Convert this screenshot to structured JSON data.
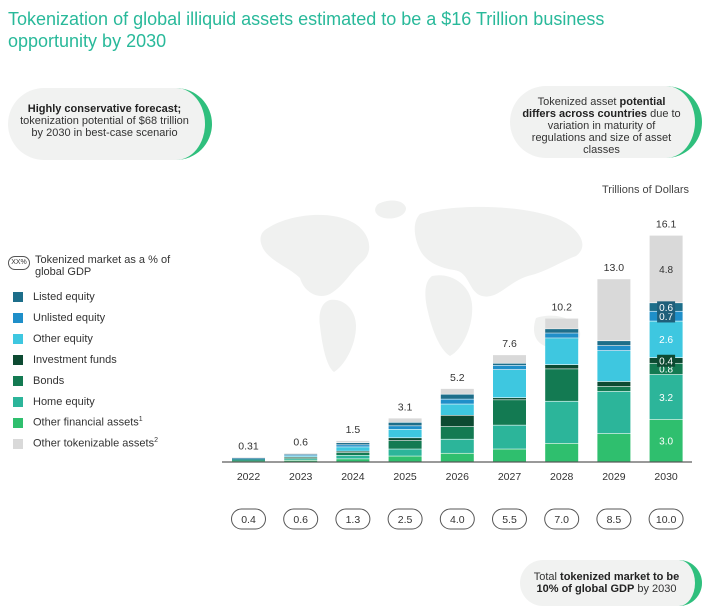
{
  "title": "Tokenization of global illiquid assets estimated to be a $16 Trillion business opportunity by 2030",
  "callout_left": {
    "bold": "Highly conservative forecast;",
    "text": "tokenization potential of $68 trillion by 2030 in best-case scenario"
  },
  "callout_right": {
    "text1": "Tokenized asset ",
    "bold": "potential differs across countries",
    "text2": " due to variation in maturity of regulations and size of asset classes"
  },
  "callout_bottom": {
    "text1": "Total ",
    "bold": "tokenized market to be 10% of global GDP",
    "text2": " by 2030"
  },
  "colors": {
    "listed": "#1d6e8a",
    "unlisted": "#1f8fc9",
    "other_equity": "#3ec7e0",
    "investment_funds": "#0d4a32",
    "bonds": "#137a52",
    "home_equity": "#2cb59a",
    "other_financial": "#2fbf6e",
    "other_tokenizable": "#d9d9d9"
  },
  "chart_data": {
    "type": "bar",
    "stacked": true,
    "unit_label": "Trillions of Dollars",
    "categories": [
      "2022",
      "2023",
      "2024",
      "2025",
      "2026",
      "2027",
      "2028",
      "2029",
      "2030"
    ],
    "totals": [
      0.31,
      0.6,
      1.5,
      3.1,
      5.2,
      7.6,
      10.2,
      13.0,
      16.1
    ],
    "totals_labels": [
      "0.31",
      "0.6",
      "1.5",
      "3.1",
      "5.2",
      "7.6",
      "10.2",
      "13.0",
      "16.1"
    ],
    "gdp_percent_label": "XX%",
    "gdp_percent_legend": "Tokenized market as a % of global GDP",
    "gdp_percent": [
      "0.4",
      "0.6",
      "1.3",
      "2.5",
      "4.0",
      "5.5",
      "7.0",
      "8.5",
      "10.0"
    ],
    "ylim": [
      0,
      16.5
    ],
    "series": [
      {
        "key": "other_financial",
        "name": "Other financial assets",
        "sup": "1",
        "values": [
          0.06,
          0.1,
          0.2,
          0.4,
          0.6,
          0.9,
          1.3,
          2.0,
          3.0
        ]
      },
      {
        "key": "home_equity",
        "name": "Home equity",
        "values": [
          0.05,
          0.1,
          0.25,
          0.5,
          1.0,
          1.7,
          3.0,
          3.0,
          3.2
        ]
      },
      {
        "key": "bonds",
        "name": "Bonds",
        "values": [
          0.04,
          0.08,
          0.2,
          0.6,
          0.9,
          1.8,
          2.3,
          0.35,
          0.8
        ]
      },
      {
        "key": "investment_funds",
        "name": "Investment funds",
        "values": [
          0.02,
          0.05,
          0.1,
          0.2,
          0.8,
          0.15,
          0.3,
          0.35,
          0.4
        ]
      },
      {
        "key": "other_equity",
        "name": "Other equity",
        "values": [
          0.04,
          0.08,
          0.3,
          0.6,
          0.8,
          2.0,
          1.9,
          2.2,
          2.6
        ]
      },
      {
        "key": "unlisted",
        "name": "Unlisted equity",
        "values": [
          0.03,
          0.06,
          0.15,
          0.25,
          0.35,
          0.3,
          0.35,
          0.35,
          0.7
        ]
      },
      {
        "key": "listed",
        "name": "Listed equity",
        "values": [
          0.03,
          0.06,
          0.15,
          0.25,
          0.35,
          0.15,
          0.3,
          0.35,
          0.6
        ]
      },
      {
        "key": "other_tokenizable",
        "name": "Other tokenizable assets",
        "sup": "2",
        "values": [
          0.04,
          0.07,
          0.15,
          0.3,
          0.4,
          0.6,
          0.75,
          4.4,
          4.8
        ]
      }
    ],
    "segment_labels_2030": [
      "3.0",
      "3.2",
      "0.8",
      "0.4",
      "2.6",
      "0.7",
      "0.6",
      "4.8"
    ]
  },
  "legend_order": [
    "listed",
    "unlisted",
    "other_equity",
    "investment_funds",
    "bonds",
    "home_equity",
    "other_financial",
    "other_tokenizable"
  ]
}
